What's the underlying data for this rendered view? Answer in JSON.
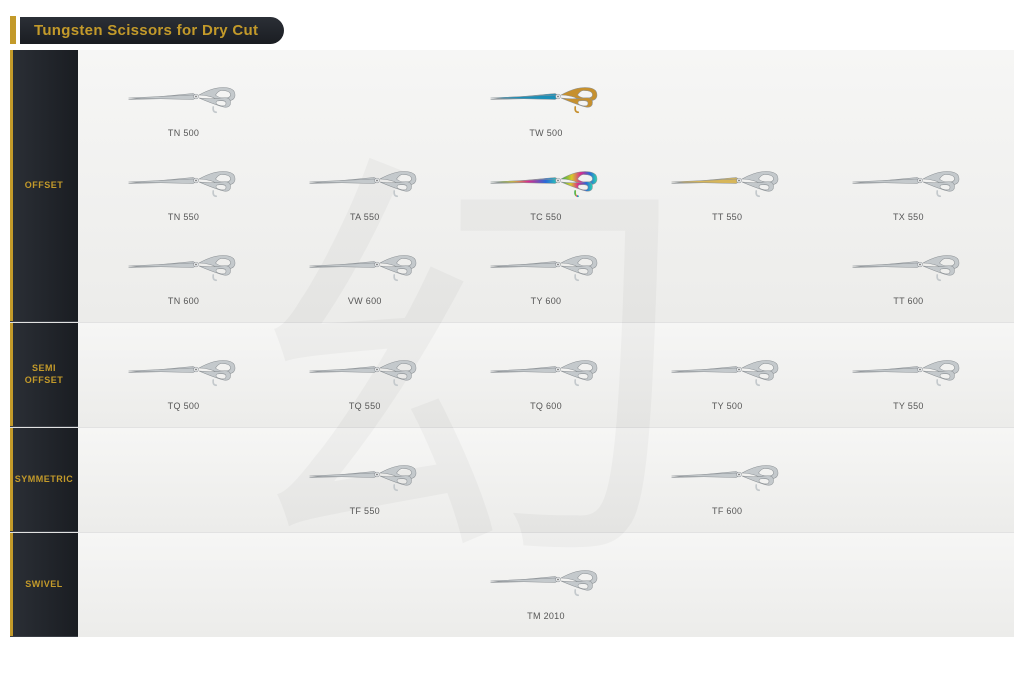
{
  "header": {
    "title": "Tungsten Scissors for Dry Cut"
  },
  "colors": {
    "accent": "#c39a2a",
    "sidebar_bg_from": "#2b2f36",
    "sidebar_bg_to": "#1a1d22",
    "content_bg_from": "#f6f6f5",
    "content_bg_to": "#ececea",
    "label_color": "#555"
  },
  "sections": [
    {
      "id": "offset",
      "label": "OFFSET",
      "rows": [
        [
          {
            "model": "TN 500",
            "blade": "#c4c9cc",
            "handle": "#c4c9cc"
          },
          null,
          {
            "model": "TW 500",
            "blade": "#1b8fb8",
            "handle": "#c6902e"
          },
          null,
          null
        ],
        [
          {
            "model": "TN 550",
            "blade": "#c4c9cc",
            "handle": "#c4c9cc"
          },
          {
            "model": "TA 550",
            "blade": "#c4c9cc",
            "handle": "#c4c9cc"
          },
          {
            "model": "TC 550",
            "blade": "rainbow",
            "handle": "rainbow"
          },
          {
            "model": "TT 550",
            "blade": "#d7b65a",
            "handle": "#c4c9cc"
          },
          {
            "model": "TX 550",
            "blade": "#c4c9cc",
            "handle": "#c4c9cc"
          }
        ],
        [
          {
            "model": "TN 600",
            "blade": "#c4c9cc",
            "handle": "#c4c9cc"
          },
          {
            "model": "VW 600",
            "blade": "#c4c9cc",
            "handle": "#c4c9cc"
          },
          {
            "model": "TY 600",
            "blade": "#c4c9cc",
            "handle": "#c4c9cc"
          },
          null,
          {
            "model": "TT 600",
            "blade": "#c4c9cc",
            "handle": "#c4c9cc"
          }
        ]
      ]
    },
    {
      "id": "semi-offset",
      "label": "SEMI\nOFFSET",
      "rows": [
        [
          {
            "model": "TQ 500",
            "blade": "#c4c9cc",
            "handle": "#c4c9cc"
          },
          {
            "model": "TQ 550",
            "blade": "#c4c9cc",
            "handle": "#c4c9cc"
          },
          {
            "model": "TQ 600",
            "blade": "#c4c9cc",
            "handle": "#c4c9cc"
          },
          {
            "model": "TY 500",
            "blade": "#c4c9cc",
            "handle": "#c4c9cc"
          },
          {
            "model": "TY 550",
            "blade": "#c4c9cc",
            "handle": "#c4c9cc"
          }
        ]
      ]
    },
    {
      "id": "symmetric",
      "label": "SYMMETRIC",
      "rows": [
        [
          null,
          {
            "model": "TF 550",
            "blade": "#c4c9cc",
            "handle": "#c4c9cc"
          },
          null,
          {
            "model": "TF 600",
            "blade": "#c4c9cc",
            "handle": "#c4c9cc"
          },
          null
        ]
      ]
    },
    {
      "id": "swivel",
      "label": "SWIVEL",
      "rows": [
        [
          null,
          null,
          {
            "model": "TM 2010",
            "blade": "#c4c9cc",
            "handle": "#c4c9cc"
          },
          null,
          null
        ]
      ]
    }
  ]
}
